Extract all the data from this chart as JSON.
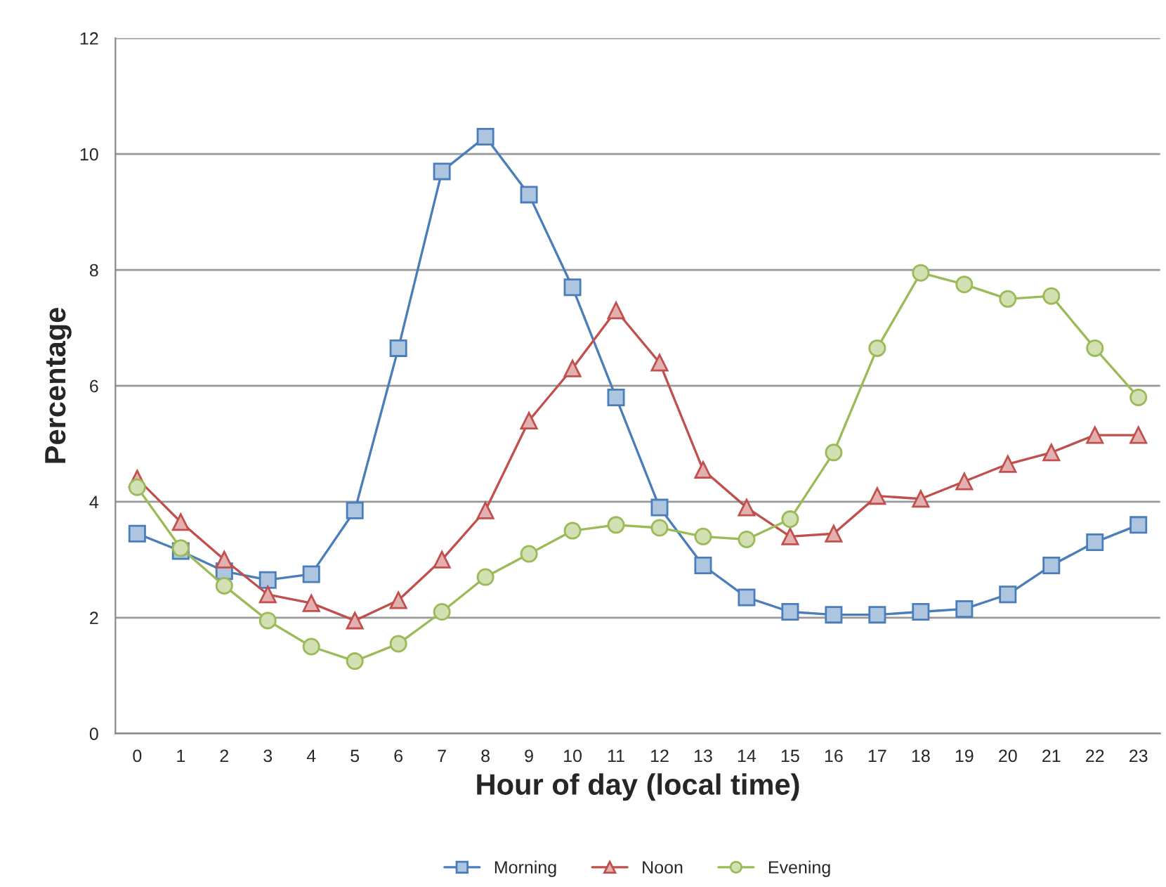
{
  "chart_data": {
    "type": "line",
    "xlabel": "Hour of day (local time)",
    "ylabel": "Percentage",
    "categories": [
      "0",
      "1",
      "2",
      "3",
      "4",
      "5",
      "6",
      "7",
      "8",
      "9",
      "10",
      "11",
      "12",
      "13",
      "14",
      "15",
      "16",
      "17",
      "18",
      "19",
      "20",
      "21",
      "22",
      "23"
    ],
    "series": [
      {
        "name": "Morning",
        "color": "#4a7ebb",
        "marker": "square",
        "values": [
          3.45,
          3.15,
          2.8,
          2.65,
          2.75,
          3.85,
          6.65,
          9.7,
          10.3,
          9.3,
          7.7,
          5.8,
          3.9,
          2.9,
          2.35,
          2.1,
          2.05,
          2.05,
          2.1,
          2.15,
          2.4,
          2.9,
          3.3,
          3.6
        ]
      },
      {
        "name": "Noon",
        "color": "#c0504d",
        "marker": "triangle",
        "values": [
          4.4,
          3.65,
          3.0,
          2.4,
          2.25,
          1.95,
          2.3,
          3.0,
          3.85,
          5.4,
          6.3,
          7.3,
          6.4,
          4.55,
          3.9,
          3.4,
          3.45,
          4.1,
          4.05,
          4.35,
          4.65,
          4.85,
          5.15,
          5.15
        ]
      },
      {
        "name": "Evening",
        "color": "#9bbb59",
        "marker": "circle",
        "values": [
          4.25,
          3.2,
          2.55,
          1.95,
          1.5,
          1.25,
          1.55,
          2.1,
          2.7,
          3.1,
          3.5,
          3.6,
          3.55,
          3.4,
          3.35,
          3.7,
          4.85,
          6.65,
          7.95,
          7.75,
          7.5,
          7.55,
          6.65,
          5.8
        ]
      }
    ],
    "ylim": [
      0,
      12
    ],
    "yticks": [
      0,
      2,
      4,
      6,
      8,
      10,
      12
    ],
    "grid": "y",
    "legend": "bottom",
    "line_style": "solid"
  }
}
